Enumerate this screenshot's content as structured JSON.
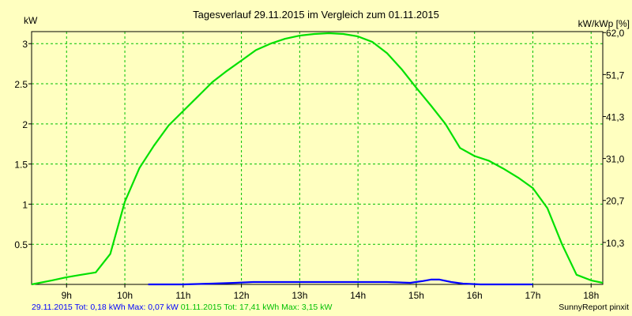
{
  "chart_data": {
    "type": "line",
    "title": "Tagesverlauf 29.11.2015 im Vergleich zum 01.11.2015",
    "ylabel_left": "kW",
    "ylabel_right": "kW/kWp [%]",
    "x_tick_labels": [
      "9h",
      "10h",
      "11h",
      "12h",
      "13h",
      "14h",
      "15h",
      "16h",
      "17h",
      "18h"
    ],
    "xlim": [
      8.4,
      18.2
    ],
    "ylim": [
      0,
      3.15
    ],
    "y_ticks_left": [
      0.5,
      1,
      1.5,
      2,
      2.5,
      3
    ],
    "y_tick_labels_left": [
      "0.5",
      "1",
      "1.5",
      "2",
      "2.5",
      "3"
    ],
    "y_ticks_right": [
      0.523,
      1.046,
      1.569,
      2.092,
      2.615,
      3.138
    ],
    "y_tick_labels_right": [
      "10,3",
      "20,7",
      "31,0",
      "41,3",
      "51,7",
      "62,0"
    ],
    "grid": true,
    "series": [
      {
        "date": "01.11.2015",
        "color": "#00e000",
        "x": [
          8.4,
          8.75,
          9.0,
          9.25,
          9.5,
          9.75,
          10.0,
          10.25,
          10.5,
          10.75,
          11.0,
          11.25,
          11.5,
          11.75,
          12.0,
          12.25,
          12.5,
          12.75,
          13.0,
          13.25,
          13.5,
          13.75,
          14.0,
          14.25,
          14.5,
          14.75,
          15.0,
          15.25,
          15.5,
          15.75,
          16.0,
          16.25,
          16.5,
          16.75,
          17.0,
          17.25,
          17.5,
          17.75,
          18.0,
          18.2
        ],
        "y": [
          0.0,
          0.05,
          0.09,
          0.12,
          0.15,
          0.38,
          1.03,
          1.45,
          1.73,
          1.98,
          2.16,
          2.34,
          2.52,
          2.66,
          2.79,
          2.92,
          3.0,
          3.06,
          3.1,
          3.12,
          3.13,
          3.12,
          3.09,
          3.02,
          2.88,
          2.68,
          2.45,
          2.23,
          2.0,
          1.7,
          1.6,
          1.54,
          1.44,
          1.33,
          1.2,
          0.95,
          0.5,
          0.12,
          0.05,
          0.02
        ]
      },
      {
        "date": "29.11.2015",
        "color": "#0000ff",
        "x": [
          10.4,
          11.0,
          11.5,
          11.9,
          12.2,
          12.5,
          13.0,
          13.5,
          14.0,
          14.5,
          14.9,
          15.1,
          15.25,
          15.4,
          15.6,
          15.8,
          16.1,
          16.5,
          17.0
        ],
        "y": [
          0.0,
          0.0,
          0.01,
          0.02,
          0.03,
          0.03,
          0.03,
          0.03,
          0.03,
          0.03,
          0.02,
          0.04,
          0.06,
          0.06,
          0.03,
          0.01,
          0.0,
          0.0,
          0.0
        ]
      }
    ]
  },
  "footer": {
    "blue": "29.11.2015 Tot: 0,18 kWh Max: 0,07 kW",
    "green": "01.11.2015 Tot: 17,41 kWh Max: 3,15 kW",
    "credit": "SunnyReport pinxit"
  }
}
